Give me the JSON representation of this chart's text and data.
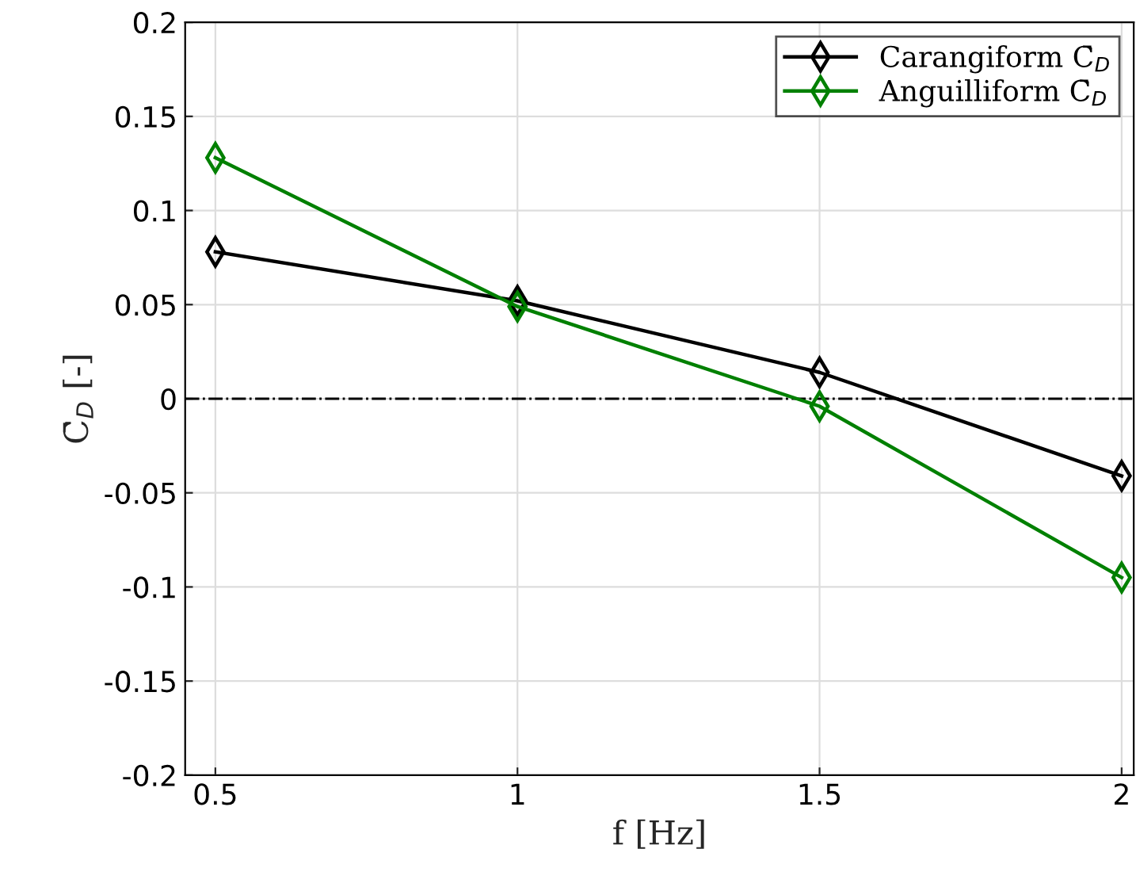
{
  "chart_data": {
    "type": "line",
    "xlabel": "f [Hz]",
    "ylabel": "C̄$_{D}$ [-]",
    "x": [
      0.5,
      1,
      1.5,
      2
    ],
    "series": [
      {
        "name": "Carangiform C̄$_{D}$",
        "color": "#000000",
        "values": [
          0.078,
          0.052,
          0.014,
          -0.041
        ]
      },
      {
        "name": "Anguilliform C̄$_{D}$",
        "color": "#008000",
        "values": [
          0.128,
          0.049,
          -0.004,
          -0.095
        ]
      }
    ],
    "xlim": [
      0.45,
      2.02
    ],
    "xticks": [
      0.5,
      1,
      1.5,
      2
    ],
    "ylim": [
      -0.2,
      0.2
    ],
    "yticks": [
      {
        "value": -0.2,
        "label": "-0.2"
      },
      {
        "value": -0.15,
        "label": "-0.15"
      },
      {
        "value": -0.1,
        "label": "-0.1"
      },
      {
        "value": -0.05,
        "label": "-0.05"
      },
      0,
      0.05,
      0.1,
      0.15,
      0.2
    ],
    "ref_lines": [
      {
        "axis": "y",
        "value": 0,
        "color": "#000000",
        "line_style": "dashdot"
      }
    ],
    "grid": true,
    "legend": "top right",
    "marker": "diamond",
    "line_style": "solid"
  }
}
